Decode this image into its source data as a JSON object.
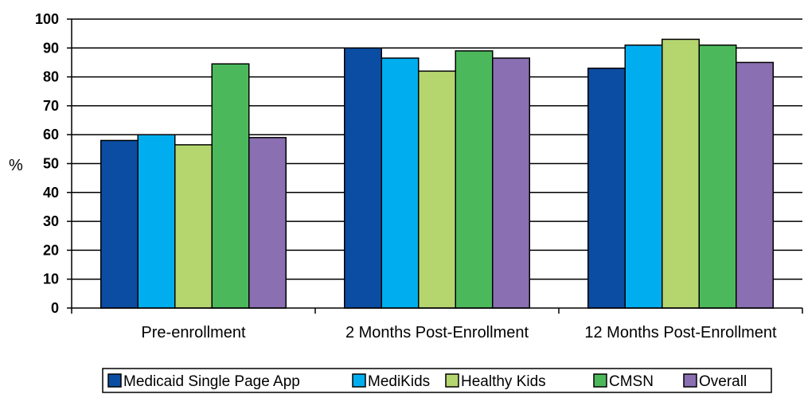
{
  "chart_data": {
    "type": "bar",
    "title": "",
    "xlabel": "",
    "ylabel": "%",
    "ylim": [
      0,
      100
    ],
    "yticks": [
      0,
      10,
      20,
      30,
      40,
      50,
      60,
      70,
      80,
      90,
      100
    ],
    "grid": true,
    "legend_position": "bottom",
    "categories": [
      "Pre-enrollment",
      "2 Months Post-Enrollment",
      "12 Months Post-Enrollment"
    ],
    "series": [
      {
        "name": "Medicaid Single Page App",
        "color": "#0b4da2",
        "values": [
          58,
          90,
          83
        ]
      },
      {
        "name": "MediKids",
        "color": "#00aeef",
        "values": [
          60,
          86.5,
          91
        ]
      },
      {
        "name": "Healthy Kids",
        "color": "#b5d56f",
        "values": [
          56.5,
          82,
          93
        ]
      },
      {
        "name": "CMSN",
        "color": "#4cb85c",
        "values": [
          84.5,
          89,
          91
        ]
      },
      {
        "name": "Overall",
        "color": "#8a6fb2",
        "values": [
          59,
          86.5,
          85
        ]
      }
    ]
  }
}
